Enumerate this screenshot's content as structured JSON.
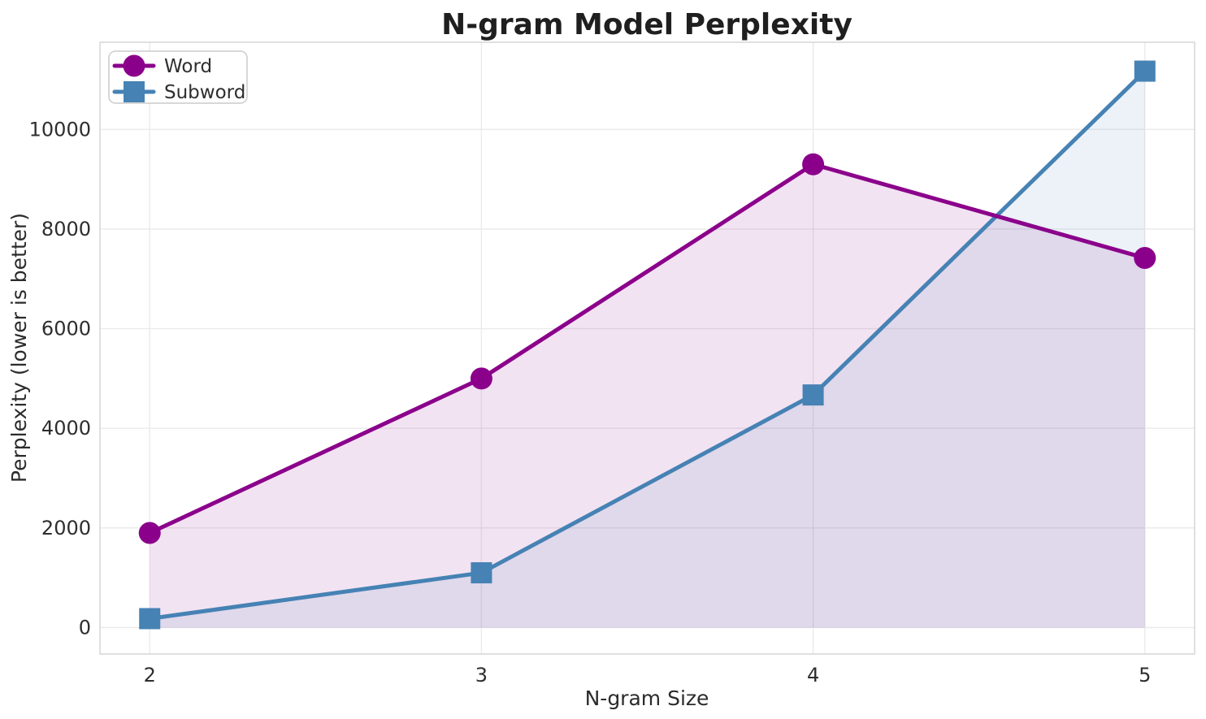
{
  "chart_data": {
    "type": "line",
    "title": "N-gram Model Perplexity",
    "xlabel": "N-gram Size",
    "ylabel": "Perplexity (lower is better)",
    "x": [
      2,
      3,
      4,
      5
    ],
    "series": [
      {
        "name": "Word",
        "color": "#8B008B",
        "marker": "circle",
        "values": [
          1900,
          5000,
          9300,
          7420
        ],
        "fill_to_zero": true,
        "fill_opacity": 0.11
      },
      {
        "name": "Subword",
        "color": "#4682B4",
        "marker": "square",
        "values": [
          180,
          1100,
          4670,
          11170
        ],
        "fill_to_zero": true,
        "fill_opacity": 0.1
      }
    ],
    "xlim": [
      1.85,
      5.15
    ],
    "ylim": [
      -530,
      11750
    ],
    "xticks": [
      2,
      3,
      4,
      5
    ],
    "xtick_labels": [
      "2",
      "3",
      "4",
      "5"
    ],
    "yticks": [
      0,
      2000,
      4000,
      6000,
      8000,
      10000
    ],
    "ytick_labels": [
      "0",
      "2000",
      "4000",
      "6000",
      "8000",
      "10000"
    ],
    "grid": true,
    "legend": {
      "position": "upper left",
      "entries": [
        "Word",
        "Subword"
      ]
    }
  },
  "colors": {
    "background": "#ffffff",
    "gridline": "#eaeaea",
    "spine": "#d6d6d6",
    "title_text": "#1f1f1f",
    "body_text": "#2e2e2e",
    "legend_border": "#cccccc",
    "legend_background": "#ffffff"
  }
}
